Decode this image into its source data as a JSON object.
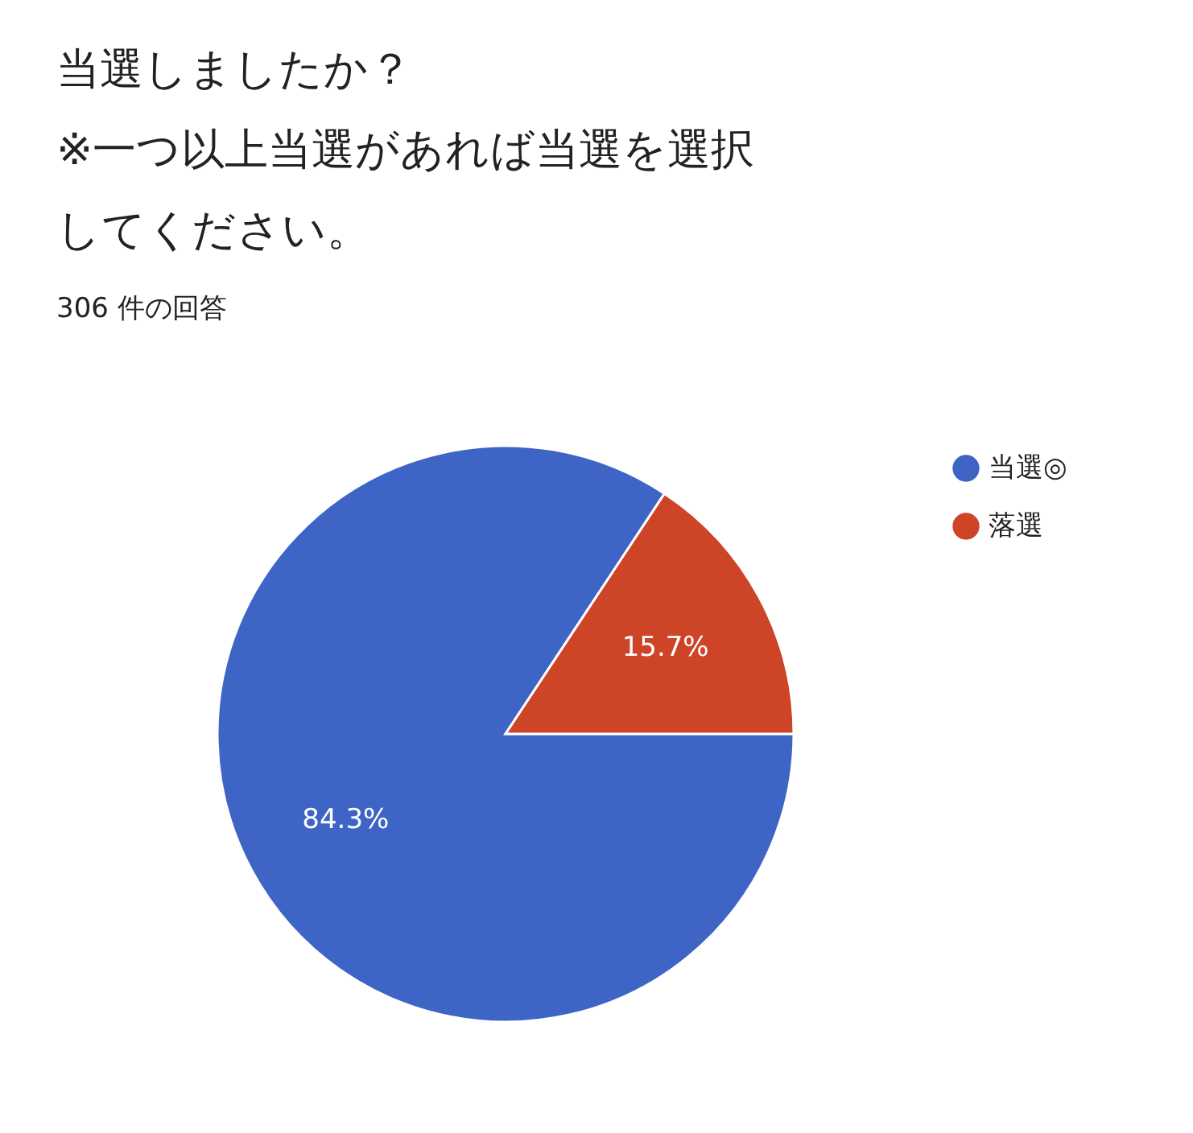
{
  "chart_data": {
    "type": "pie",
    "title": "当選しましたか？※一つ以上当選があれば当選を選択してください。",
    "subtitle": "306 件の回答",
    "categories": [
      "当選◎",
      "落選"
    ],
    "values": [
      84.3,
      15.7
    ],
    "colors": [
      "#3e64c6",
      "#cd4427"
    ],
    "value_labels": [
      "84.3%",
      "15.7%"
    ],
    "legend": "top right"
  }
}
